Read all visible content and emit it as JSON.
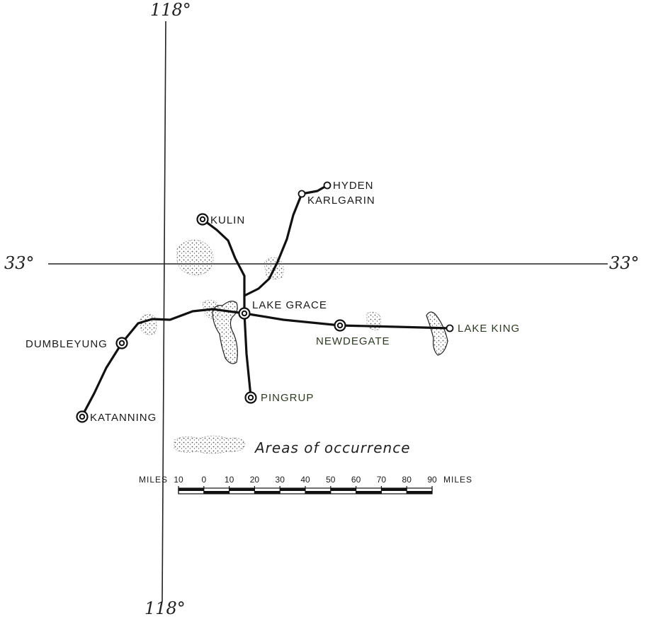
{
  "meridian": {
    "top": "118°",
    "bottom": "118°"
  },
  "parallel": {
    "left": "33°",
    "right": "33°"
  },
  "towns": {
    "hyden": "HYDEN",
    "karlgarin": "KARLGARIN",
    "kulin": "KULIN",
    "lake_grace": "LAKE GRACE",
    "dumbleyung": "DUMBLEYUNG",
    "newdegate": "NEWDEGATE",
    "lake_king": "LAKE KING",
    "pingrup": "PINGRUP",
    "katanning": "KATANNING"
  },
  "legend": {
    "label": "Areas of occurrence",
    "swatch_icon": "stipple-area-icon"
  },
  "scale": {
    "unit_left": "MILES",
    "unit_right": "MILES",
    "ticks": [
      "10",
      "0",
      "10",
      "20",
      "30",
      "40",
      "50",
      "60",
      "70",
      "80",
      "90"
    ]
  },
  "colors": {
    "ink": "#1a1a1a",
    "stipple": "#555555"
  }
}
